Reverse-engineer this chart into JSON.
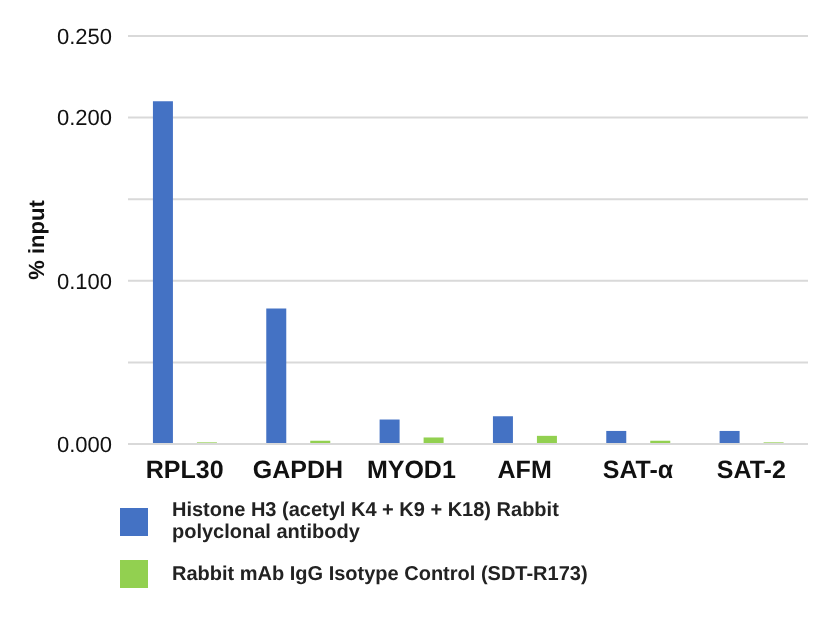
{
  "chart_data": {
    "type": "bar",
    "ylabel": "% input",
    "categories": [
      "RPL30",
      "GAPDH",
      "MYOD1",
      "AFM",
      "SAT-α",
      "SAT-2"
    ],
    "series": [
      {
        "name": "Histone H3 (acetyl K4 + K9 + K18) Rabbit polyclonal antibody",
        "color": "#4472c4",
        "values": [
          0.21,
          0.083,
          0.015,
          0.017,
          0.008,
          0.008
        ]
      },
      {
        "name": "Rabbit mAb IgG Isotype Control (SDT-R173)",
        "color": "#92d050",
        "values": [
          0.001,
          0.002,
          0.004,
          0.005,
          0.002,
          0.001
        ]
      }
    ],
    "ylim": [
      0,
      0.25
    ],
    "yticks": [
      {
        "value": 0,
        "label": "0.000"
      },
      {
        "value": 0.05,
        "label": null
      },
      {
        "value": 0.1,
        "label": "0.100"
      },
      {
        "value": 0.15,
        "label": null
      },
      {
        "value": 0.2,
        "label": "0.200"
      },
      {
        "value": 0.25,
        "label": "0.250"
      }
    ],
    "grid": "y",
    "legend": "bottom"
  }
}
